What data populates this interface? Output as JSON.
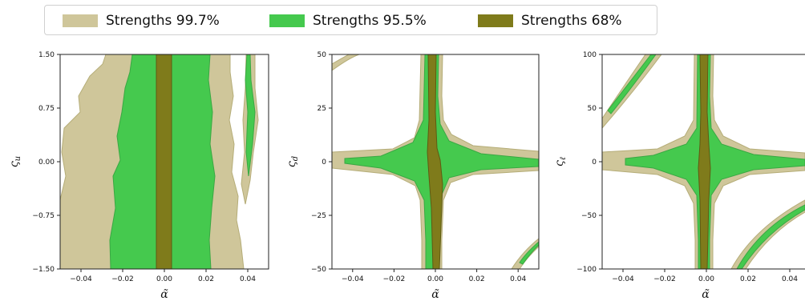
{
  "legend": {
    "items": [
      {
        "label": "Strengths 99.7%",
        "color": "#cfc69a"
      },
      {
        "label": "Strengths 95.5%",
        "color": "#45c94e"
      },
      {
        "label": "Strengths 68%",
        "color": "#7f7b1b"
      }
    ]
  },
  "colors": {
    "region_997": "#cfc69a",
    "region_997_edge": "#b5ad78",
    "region_955": "#45c94e",
    "region_955_edge": "#3aa843",
    "region_68": "#7f7b1b",
    "region_68_edge": "#5e5b12"
  },
  "chart_data": [
    {
      "type": "area",
      "subtype": "confidence-region contour",
      "xlabel": "α̃",
      "ylabel": "ς",
      "ylabel_sub": "u",
      "xlim": [
        -0.05,
        0.05
      ],
      "ylim": [
        -1.5,
        1.5
      ],
      "xticks": [
        "−0.04",
        "−0.02",
        "0.00",
        "0.02",
        "0.04"
      ],
      "xtick_values": [
        -0.04,
        -0.02,
        0.0,
        0.02,
        0.04
      ],
      "yticks": [
        "1.50",
        "0.75",
        "0.00",
        "−0.75",
        "−1.50"
      ],
      "ytick_values": [
        1.5,
        0.75,
        0.0,
        -0.75,
        -1.5
      ],
      "regions": {
        "strengths_99_7": {
          "x_range": [
            -0.05,
            0.037
          ],
          "y_range": [
            -1.5,
            1.5
          ]
        },
        "strengths_95_5": {
          "x_range": [
            -0.025,
            0.026
          ],
          "y_range": [
            -1.5,
            1.5
          ]
        },
        "strengths_68": {
          "x_range": [
            -0.004,
            0.003
          ],
          "y_range": [
            -1.5,
            1.5
          ]
        }
      }
    },
    {
      "type": "area",
      "subtype": "confidence-region contour",
      "xlabel": "α̃",
      "ylabel": "ς",
      "ylabel_sub": "d",
      "xlim": [
        -0.05,
        0.05
      ],
      "ylim": [
        -50,
        50
      ],
      "xticks": [
        "−0.04",
        "−0.02",
        "0.00",
        "0.02",
        "0.04"
      ],
      "xtick_values": [
        -0.04,
        -0.02,
        0.0,
        0.02,
        0.04
      ],
      "yticks": [
        "50",
        "25",
        "0",
        "−25",
        "−50"
      ],
      "ytick_values": [
        50,
        25,
        0,
        -25,
        -50
      ],
      "regions": {
        "strengths_99_7": {
          "shape": "cross",
          "x_range": [
            -0.05,
            0.05
          ],
          "y_range": [
            -50,
            50
          ]
        },
        "strengths_95_5": {
          "shape": "cross",
          "x_range": [
            -0.05,
            0.05
          ],
          "y_range": [
            -50,
            50
          ]
        },
        "strengths_68": {
          "shape": "vertical band",
          "x_range": [
            -0.003,
            0.004
          ],
          "y_range": [
            -50,
            50
          ]
        }
      }
    },
    {
      "type": "area",
      "subtype": "confidence-region contour",
      "xlabel": "α̃",
      "ylabel": "ς",
      "ylabel_sub": "ℓ",
      "xlim": [
        -0.05,
        0.05
      ],
      "ylim": [
        -100,
        100
      ],
      "xticks": [
        "−0.04",
        "−0.02",
        "0.00",
        "0.02",
        "0.04"
      ],
      "xtick_values": [
        -0.04,
        -0.02,
        0.0,
        0.02,
        0.04
      ],
      "yticks": [
        "100",
        "50",
        "0",
        "−50",
        "−100"
      ],
      "ytick_values": [
        100,
        50,
        0,
        -50,
        -100
      ],
      "regions": {
        "strengths_99_7": {
          "shape": "cross",
          "x_range": [
            -0.05,
            0.05
          ],
          "y_range": [
            -100,
            100
          ]
        },
        "strengths_95_5": {
          "shape": "cross",
          "x_range": [
            -0.05,
            0.05
          ],
          "y_range": [
            -100,
            100
          ]
        },
        "strengths_68": {
          "shape": "vertical band",
          "x_range": [
            -0.003,
            0.003
          ],
          "y_range": [
            -100,
            100
          ]
        }
      }
    }
  ]
}
